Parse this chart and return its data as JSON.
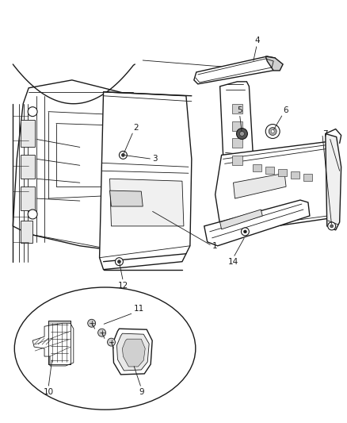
{
  "bg_color": "#ffffff",
  "lc": "#1a1a1a",
  "fig_width": 4.38,
  "fig_height": 5.33,
  "dpi": 100,
  "fs": 7.5
}
